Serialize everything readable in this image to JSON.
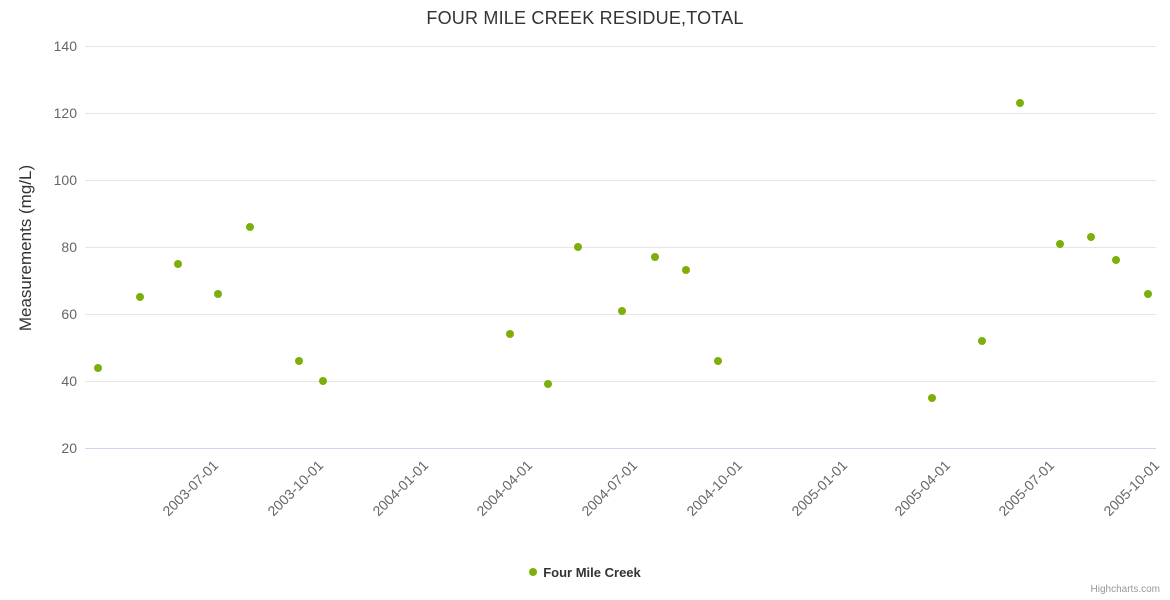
{
  "chart": {
    "title": "FOUR MILE CREEK RESIDUE,TOTAL",
    "y_axis_title": "Measurements (mg/L)",
    "legend_label": "Four Mile Creek",
    "credit": "Highcharts.com"
  },
  "chart_data": {
    "type": "scatter",
    "title": "FOUR MILE CREEK RESIDUE,TOTAL",
    "xlabel": "",
    "ylabel": "Measurements (mg/L)",
    "ylim": [
      20,
      140
    ],
    "y_ticks": [
      20,
      40,
      60,
      80,
      100,
      120,
      140
    ],
    "x_ticks": [
      "2003-07-01",
      "2003-10-01",
      "2004-01-01",
      "2004-04-01",
      "2004-07-01",
      "2004-10-01",
      "2005-01-01",
      "2005-04-01",
      "2005-07-01",
      "2005-10-01"
    ],
    "x_range": [
      "2003-03-14",
      "2005-10-05"
    ],
    "grid": true,
    "legend_position": "bottom",
    "series": [
      {
        "name": "Four Mile Creek",
        "color": "#7daf0a",
        "points": [
          {
            "date": "2003-03-25",
            "value": 44
          },
          {
            "date": "2003-05-01",
            "value": 65
          },
          {
            "date": "2003-06-03",
            "value": 75
          },
          {
            "date": "2003-07-08",
            "value": 66
          },
          {
            "date": "2003-08-05",
            "value": 86
          },
          {
            "date": "2003-09-17",
            "value": 46
          },
          {
            "date": "2003-10-08",
            "value": 40
          },
          {
            "date": "2004-03-19",
            "value": 54
          },
          {
            "date": "2004-04-22",
            "value": 39
          },
          {
            "date": "2004-05-18",
            "value": 80
          },
          {
            "date": "2004-06-25",
            "value": 61
          },
          {
            "date": "2004-07-24",
            "value": 77
          },
          {
            "date": "2004-08-20",
            "value": 73
          },
          {
            "date": "2004-09-17",
            "value": 46
          },
          {
            "date": "2005-03-23",
            "value": 35
          },
          {
            "date": "2005-05-06",
            "value": 52
          },
          {
            "date": "2005-06-08",
            "value": 123
          },
          {
            "date": "2005-07-13",
            "value": 81
          },
          {
            "date": "2005-08-09",
            "value": 83
          },
          {
            "date": "2005-08-31",
            "value": 76
          },
          {
            "date": "2005-09-28",
            "value": 66
          }
        ]
      }
    ]
  }
}
